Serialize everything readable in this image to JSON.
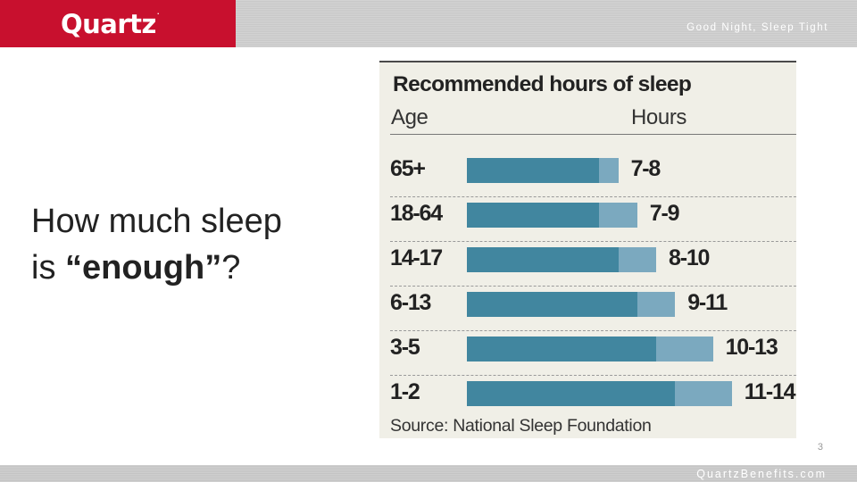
{
  "header": {
    "logo": "Quartz",
    "title": "Good Night, Sleep Tight"
  },
  "headline": {
    "line1": "How much sleep",
    "prefix": "is ",
    "emphasis": "“enough”",
    "suffix": "?"
  },
  "chart_data": {
    "type": "bar",
    "orientation": "horizontal",
    "title": "Recommended hours of sleep",
    "category_header": "Age",
    "value_header": "Hours",
    "source": "Source: National Sleep Foundation",
    "rows": [
      {
        "age": "65+",
        "label": "7-8",
        "min": 7,
        "max": 8
      },
      {
        "age": "18-64",
        "label": "7-9",
        "min": 7,
        "max": 9
      },
      {
        "age": "14-17",
        "label": "8-10",
        "min": 8,
        "max": 10
      },
      {
        "age": "6-13",
        "label": "9-11",
        "min": 9,
        "max": 11
      },
      {
        "age": "3-5",
        "label": "10-13",
        "min": 10,
        "max": 13
      },
      {
        "age": "1-2",
        "label": "11-14",
        "min": 11,
        "max": 14
      }
    ],
    "colors": {
      "min_bar": "#41869f",
      "range_bar": "#7ba9bf"
    },
    "grid": false,
    "legend": "none"
  },
  "page_number": "3",
  "footer": {
    "text": "QuartzBenefits.com"
  }
}
